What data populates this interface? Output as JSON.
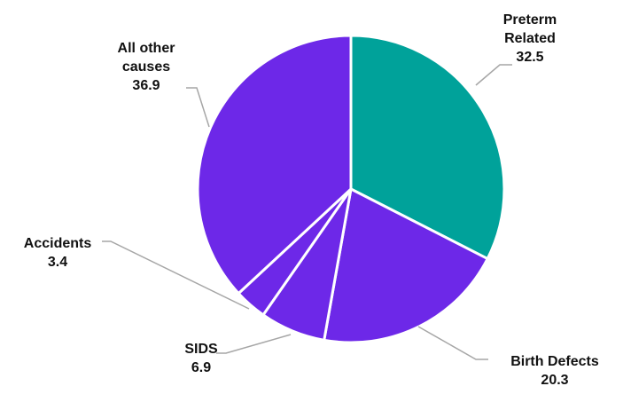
{
  "chart_data": {
    "type": "pie",
    "title": "",
    "slices": [
      {
        "label": "Preterm Related",
        "label_lines": [
          "Preterm",
          "Related"
        ],
        "value": 32.5,
        "value_text": "32.5",
        "color": "#00a29a"
      },
      {
        "label": "Birth Defects",
        "label_lines": [
          "Birth Defects"
        ],
        "value": 20.3,
        "value_text": "20.3",
        "color": "#6d28e8"
      },
      {
        "label": "SIDS",
        "label_lines": [
          "SIDS"
        ],
        "value": 6.9,
        "value_text": "6.9",
        "color": "#6d28e8"
      },
      {
        "label": "Accidents",
        "label_lines": [
          "Accidents"
        ],
        "value": 3.4,
        "value_text": "3.4",
        "color": "#6d28e8"
      },
      {
        "label": "All other causes",
        "label_lines": [
          "All other",
          "causes"
        ],
        "value": 36.9,
        "value_text": "36.9",
        "color": "#6d28e8"
      }
    ],
    "start_angle": "12 o'clock",
    "direction": "clockwise",
    "legend": "none; labels outside slices with leader lines"
  }
}
